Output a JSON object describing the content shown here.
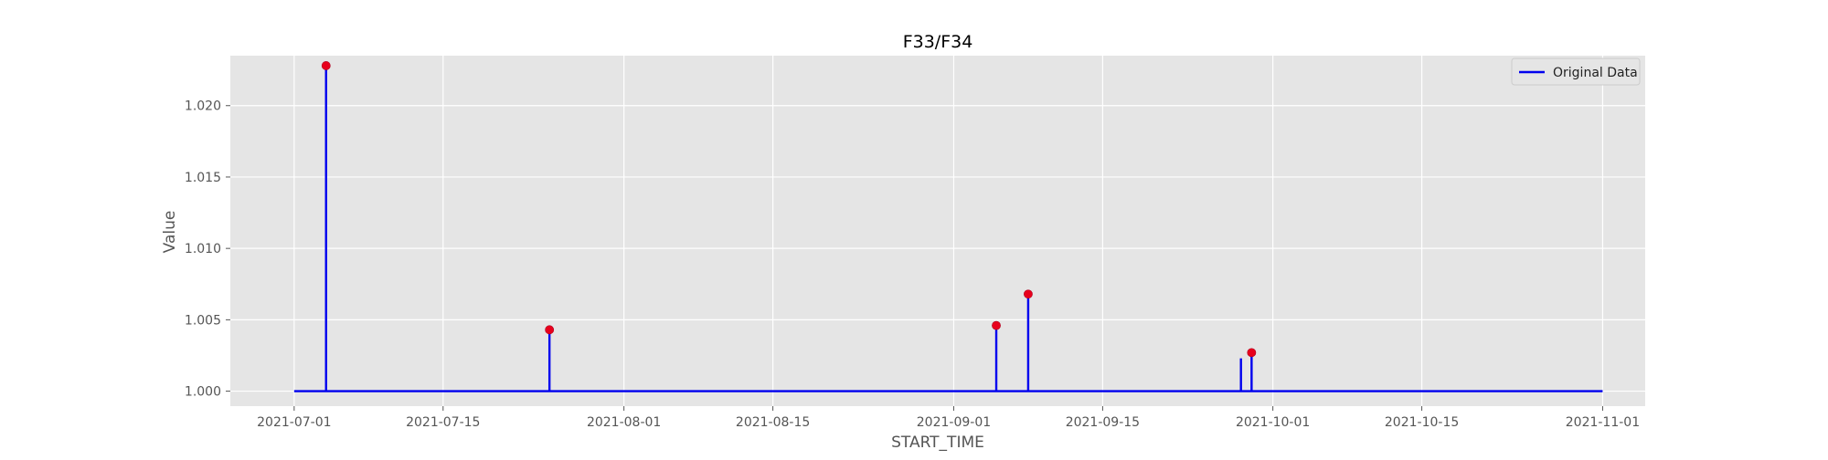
{
  "chart_data": {
    "type": "line",
    "title": "F33/F34",
    "xlabel": "START_TIME",
    "ylabel": "Value",
    "x_range": [
      "2021-06-25",
      "2021-11-05"
    ],
    "ylim": [
      0.99895,
      1.0235
    ],
    "x_ticks": [
      "2021-07-01",
      "2021-07-15",
      "2021-08-01",
      "2021-08-15",
      "2021-09-01",
      "2021-09-15",
      "2021-10-01",
      "2021-10-15",
      "2021-11-01"
    ],
    "y_ticks": [
      "1.000",
      "1.005",
      "1.010",
      "1.015",
      "1.020"
    ],
    "grid": true,
    "legend_position": "top-right",
    "series": [
      {
        "name": "Original Data",
        "color": "#0000ee",
        "points": [
          {
            "x": "2021-07-01",
            "y": 1.0
          },
          {
            "x": "2021-07-04",
            "y": 1.0
          },
          {
            "x": "2021-07-04",
            "y": 1.0228
          },
          {
            "x": "2021-07-04",
            "y": 1.0
          },
          {
            "x": "2021-07-25",
            "y": 1.0
          },
          {
            "x": "2021-07-25",
            "y": 1.0043
          },
          {
            "x": "2021-07-25",
            "y": 1.0
          },
          {
            "x": "2021-09-05",
            "y": 1.0
          },
          {
            "x": "2021-09-05",
            "y": 1.0046
          },
          {
            "x": "2021-09-05",
            "y": 1.0
          },
          {
            "x": "2021-09-08",
            "y": 1.0
          },
          {
            "x": "2021-09-08",
            "y": 1.0068
          },
          {
            "x": "2021-09-08",
            "y": 1.0
          },
          {
            "x": "2021-09-28",
            "y": 1.0
          },
          {
            "x": "2021-09-28",
            "y": 1.0023
          },
          {
            "x": "2021-09-28",
            "y": 1.0
          },
          {
            "x": "2021-09-29",
            "y": 1.0
          },
          {
            "x": "2021-09-29",
            "y": 1.0027
          },
          {
            "x": "2021-09-29",
            "y": 1.0
          },
          {
            "x": "2021-11-01",
            "y": 1.0
          }
        ]
      }
    ],
    "highlighted_points": {
      "color": "#e8001c",
      "points": [
        {
          "x": "2021-07-04",
          "y": 1.0228
        },
        {
          "x": "2021-07-25",
          "y": 1.0043
        },
        {
          "x": "2021-09-05",
          "y": 1.0046
        },
        {
          "x": "2021-09-08",
          "y": 1.0068
        },
        {
          "x": "2021-09-29",
          "y": 1.0027
        }
      ]
    }
  }
}
